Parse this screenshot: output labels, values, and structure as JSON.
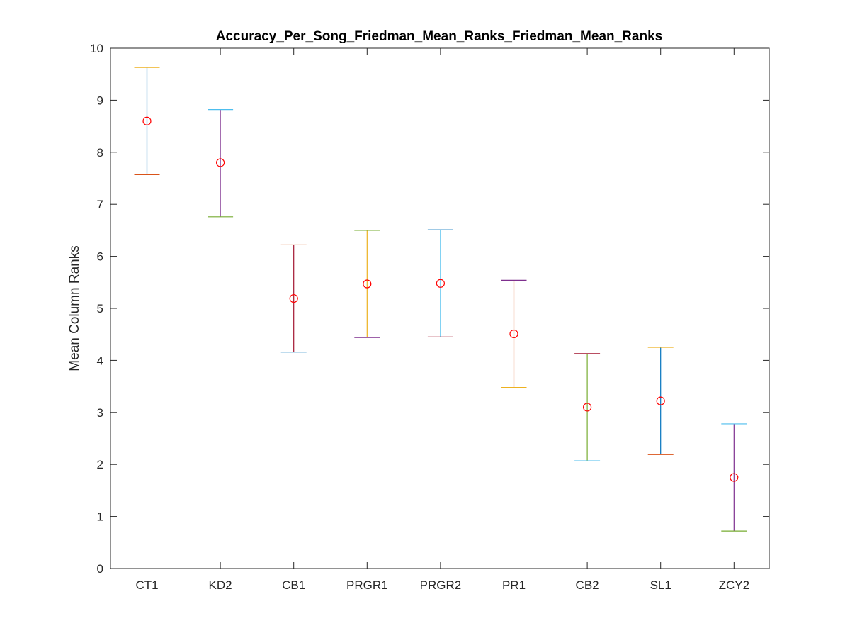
{
  "chart_data": {
    "type": "errorbar",
    "title": "Accuracy_Per_Song_Friedman_Mean_Ranks_Friedman_Mean_Ranks",
    "xlabel": "",
    "ylabel": "Mean Column Ranks",
    "ylim": [
      0,
      10
    ],
    "yticks": [
      "0",
      "1",
      "2",
      "3",
      "4",
      "5",
      "6",
      "7",
      "8",
      "9",
      "10"
    ],
    "grid": false,
    "marker_color": "#ff0000",
    "categories": [
      "CT1",
      "KD2",
      "CB1",
      "PRGR1",
      "PRGR2",
      "PR1",
      "CB2",
      "SL1",
      "ZCY2"
    ],
    "points": [
      {
        "label": "CT1",
        "mean": 8.6,
        "lower": 7.57,
        "upper": 9.63,
        "line_color": "#0072bd",
        "cap_top_color": "#edb120",
        "cap_bottom_color": "#d95319"
      },
      {
        "label": "KD2",
        "mean": 7.8,
        "lower": 6.76,
        "upper": 8.82,
        "line_color": "#7e2f8e",
        "cap_top_color": "#4dbeee",
        "cap_bottom_color": "#77ac30"
      },
      {
        "label": "CB1",
        "mean": 5.19,
        "lower": 4.16,
        "upper": 6.22,
        "line_color": "#a2142f",
        "cap_top_color": "#d95319",
        "cap_bottom_color": "#0072bd"
      },
      {
        "label": "PRGR1",
        "mean": 5.47,
        "lower": 4.44,
        "upper": 6.5,
        "line_color": "#edb120",
        "cap_top_color": "#77ac30",
        "cap_bottom_color": "#7e2f8e"
      },
      {
        "label": "PRGR2",
        "mean": 5.48,
        "lower": 4.45,
        "upper": 6.51,
        "line_color": "#4dbeee",
        "cap_top_color": "#0072bd",
        "cap_bottom_color": "#a2142f"
      },
      {
        "label": "PR1",
        "mean": 4.51,
        "lower": 3.48,
        "upper": 5.54,
        "line_color": "#d95319",
        "cap_top_color": "#7e2f8e",
        "cap_bottom_color": "#edb120"
      },
      {
        "label": "CB2",
        "mean": 3.1,
        "lower": 2.07,
        "upper": 4.13,
        "line_color": "#77ac30",
        "cap_top_color": "#a2142f",
        "cap_bottom_color": "#4dbeee"
      },
      {
        "label": "SL1",
        "mean": 3.22,
        "lower": 2.19,
        "upper": 4.25,
        "line_color": "#0072bd",
        "cap_top_color": "#edb120",
        "cap_bottom_color": "#d95319"
      },
      {
        "label": "ZCY2",
        "mean": 1.75,
        "lower": 0.72,
        "upper": 2.78,
        "line_color": "#7e2f8e",
        "cap_top_color": "#4dbeee",
        "cap_bottom_color": "#77ac30"
      }
    ]
  }
}
